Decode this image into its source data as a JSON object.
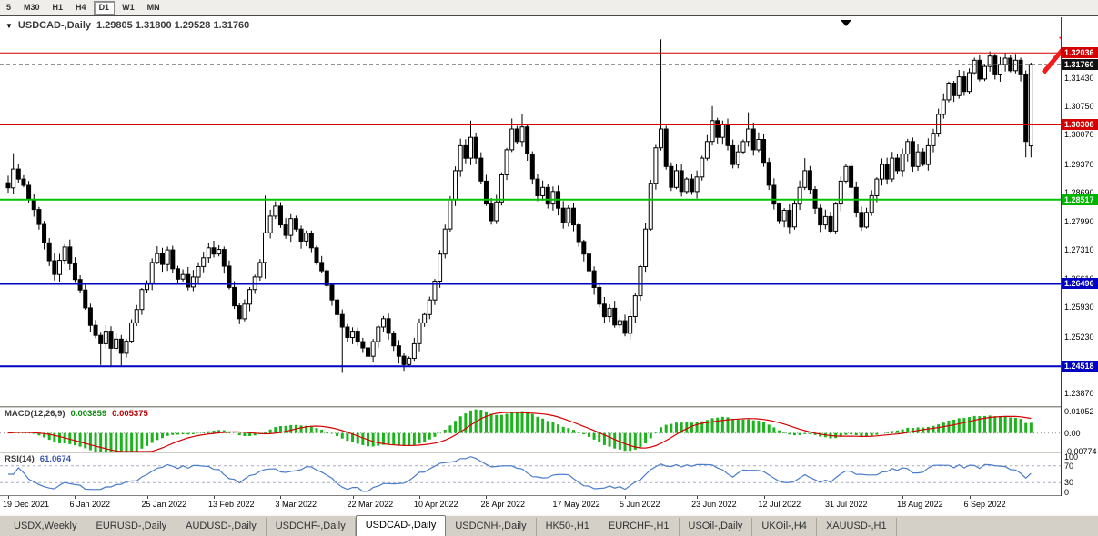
{
  "toolbar": {
    "timeframes": [
      {
        "label": "5",
        "active": false
      },
      {
        "label": "M30",
        "active": false
      },
      {
        "label": "H1",
        "active": false
      },
      {
        "label": "H4",
        "active": false
      },
      {
        "label": "D1",
        "active": true
      },
      {
        "label": "W1",
        "active": false
      },
      {
        "label": "MN",
        "active": false
      }
    ]
  },
  "chart_header": {
    "dropdown_icon": "▼",
    "title": "USDCAD-,Daily",
    "ohlc_readout": "1.29805 1.31800 1.29528 1.31760"
  },
  "chart_data": {
    "type": "candlestick",
    "title": "USDCAD-,Daily",
    "symbol": "USDCAD-",
    "timeframe": "Daily",
    "last_bar": {
      "open": 1.29805,
      "high": 1.318,
      "low": 1.29528,
      "close": 1.3176
    },
    "current_price": "1.31760",
    "x_labels": [
      "19 Dec 2021",
      "6 Jan 2022",
      "25 Jan 2022",
      "13 Feb 2022",
      "3 Mar 2022",
      "22 Mar 2022",
      "10 Apr 2022",
      "28 Apr 2022",
      "17 May 2022",
      "5 Jun 2022",
      "23 Jun 2022",
      "12 Jul 2022",
      "31 Jul 2022",
      "18 Aug 2022",
      "6 Sep 2022"
    ],
    "y_axis": {
      "min": 1.2387,
      "max": 1.3143,
      "ticks": [
        "1.31430",
        "1.30750",
        "1.30070",
        "1.29370",
        "1.28690",
        "1.27990",
        "1.27310",
        "1.26610",
        "1.25930",
        "1.25230",
        "1.24550",
        "1.23870"
      ]
    },
    "levels": [
      {
        "price": 1.32036,
        "color": "#d40000",
        "width": 1,
        "label": "1.32036",
        "label_bg": "#d40000"
      },
      {
        "price": 1.3176,
        "color": "#555555",
        "width": 1,
        "dash": true,
        "role": "current-price-line",
        "label": "1.31760",
        "label_bg": "#111111"
      },
      {
        "price": 1.30308,
        "color": "#d40000",
        "width": 1,
        "label": "1.30308",
        "label_bg": "#d40000"
      },
      {
        "price": 1.28517,
        "color": "#00c400",
        "width": 2,
        "label": "1.28517",
        "label_bg": "#00b400"
      },
      {
        "price": 1.26496,
        "color": "#0000c0",
        "width": 2,
        "label": "1.26496",
        "label_bg": "#0000c0"
      },
      {
        "price": 1.24518,
        "color": "#0000c0",
        "width": 2,
        "label": "1.24518",
        "label_bg": "#0000c0"
      }
    ],
    "bull_color": "#ffffff",
    "bear_color": "#000000",
    "outline_color": "#000000",
    "series": {
      "closes": [
        1.288,
        1.2925,
        1.2901,
        1.2886,
        1.2852,
        1.2828,
        1.2792,
        1.2748,
        1.2705,
        1.2672,
        1.2706,
        1.2738,
        1.2698,
        1.266,
        1.2635,
        1.2592,
        1.255,
        1.2526,
        1.2506,
        1.2536,
        1.2495,
        1.2517,
        1.2483,
        1.2512,
        1.2556,
        1.2588,
        1.2636,
        1.2652,
        1.2701,
        1.2722,
        1.2696,
        1.2731,
        1.2686,
        1.2661,
        1.2672,
        1.2642,
        1.2666,
        1.2691,
        1.2712,
        1.2736,
        1.2721,
        1.2732,
        1.2692,
        1.2641,
        1.2597,
        1.2566,
        1.2601,
        1.2636,
        1.2666,
        1.2701,
        1.2772,
        1.2812,
        1.2836,
        1.2791,
        1.2766,
        1.2806,
        1.2781,
        1.2752,
        1.2771,
        1.2736,
        1.2701,
        1.2681,
        1.2646,
        1.2611,
        1.2576,
        1.2546,
        1.2521,
        1.2536,
        1.2511,
        1.2496,
        1.2476,
        1.2511,
        1.2546,
        1.2566,
        1.2531,
        1.2501,
        1.2476,
        1.2456,
        1.2471,
        1.2506,
        1.2556,
        1.2576,
        1.2611,
        1.2656,
        1.2721,
        1.2781,
        1.2851,
        1.2921,
        1.2981,
        1.2951,
        1.3001,
        1.2951,
        1.2896,
        1.2841,
        1.2801,
        1.2846,
        1.2911,
        1.2971,
        1.3021,
        1.2991,
        1.3026,
        1.2961,
        1.2901,
        1.2861,
        1.2881,
        1.2841,
        1.2871,
        1.2831,
        1.2796,
        1.2831,
        1.2791,
        1.2751,
        1.2721,
        1.2681,
        1.2641,
        1.2601,
        1.2571,
        1.2591,
        1.2551,
        1.2561,
        1.2531,
        1.2571,
        1.2621,
        1.2691,
        1.2781,
        1.2891,
        1.2976,
        1.3021,
        1.2931,
        1.2881,
        1.2921,
        1.2871,
        1.2901,
        1.2871,
        1.2906,
        1.2951,
        1.2991,
        1.3041,
        1.3001,
        1.3031,
        1.2981,
        1.2936,
        1.2966,
        1.2991,
        1.3021,
        1.2971,
        1.2996,
        1.2941,
        1.2886,
        1.2841,
        1.2801,
        1.2826,
        1.2786,
        1.2841,
        1.2881,
        1.2921,
        1.2876,
        1.2831,
        1.2791,
        1.2811,
        1.2776,
        1.2841,
        1.2896,
        1.2931,
        1.2881,
        1.2821,
        1.2786,
        1.2821,
        1.2861,
        1.2901,
        1.2936,
        1.2901,
        1.2951,
        1.2921,
        1.2961,
        1.2991,
        1.2931,
        1.2966,
        1.2936,
        1.2981,
        1.3011,
        1.3056,
        1.3091,
        1.3131,
        1.3101,
        1.3146,
        1.3111,
        1.3156,
        1.3186,
        1.3141,
        1.3171,
        1.3196,
        1.3151,
        1.3176,
        1.3191,
        1.3161,
        1.3186,
        1.3151,
        1.2991,
        1.3176
      ],
      "overrides": {
        "1": {
          "h": 1.2963
        },
        "18": {
          "l": 1.2455
        },
        "20": {
          "l": 1.245
        },
        "22": {
          "l": 1.2452
        },
        "50": {
          "h": 1.2861,
          "l": 1.2662
        },
        "65": {
          "l": 1.2436
        },
        "77": {
          "l": 1.2441
        },
        "90": {
          "h": 1.3041
        },
        "98": {
          "h": 1.3046
        },
        "100": {
          "h": 1.3056
        },
        "127": {
          "h": 1.3236
        },
        "137": {
          "h": 1.3076
        },
        "144": {
          "h": 1.3061
        },
        "155": {
          "h": 1.2951
        },
        "191": {
          "h": 1.3207
        },
        "194": {
          "h": 1.3204
        },
        "198": {
          "l": 1.2953
        },
        "199": {
          "o": 1.29805,
          "h": 1.318,
          "l": 1.29528
        }
      }
    },
    "indicators": {
      "macd": {
        "type": "bar+line",
        "label": "MACD(12,26,9)",
        "value_main": "0.003859",
        "value_signal": "0.005375",
        "params": [
          12,
          26,
          9
        ],
        "histogram_color": "#1db31d",
        "signal_color": "#d40000",
        "axis": [
          {
            "text": "0.01052",
            "value": 0.01052
          },
          {
            "text": "0.00",
            "value": 0
          },
          {
            "text": "-0.00774",
            "value": -0.00774
          }
        ]
      },
      "rsi": {
        "type": "line",
        "label": "RSI(14)",
        "value": "61.0674",
        "period": 14,
        "line_color": "#4a7cc9",
        "level_lines": [
          70,
          30
        ],
        "axis": [
          {
            "text": "100",
            "value": 100
          },
          {
            "text": "70",
            "value": 70
          },
          {
            "text": "30",
            "value": 30
          },
          {
            "text": "0",
            "value": 0
          }
        ]
      }
    }
  },
  "annotations": {
    "arrow_color": "#f21b1b",
    "shift_marker_color": "#000000"
  },
  "tabs": [
    {
      "label": "USDX,Weekly",
      "active": false
    },
    {
      "label": "EURUSD-,Daily",
      "active": false
    },
    {
      "label": "AUDUSD-,Daily",
      "active": false
    },
    {
      "label": "USDCHF-,Daily",
      "active": false
    },
    {
      "label": "USDCAD-,Daily",
      "active": true
    },
    {
      "label": "USDCNH-,Daily",
      "active": false
    },
    {
      "label": "HK50-,H1",
      "active": false
    },
    {
      "label": "EURCHF-,H1",
      "active": false
    },
    {
      "label": "USOil-,Daily",
      "active": false
    },
    {
      "label": "UKOil-,H4",
      "active": false
    },
    {
      "label": "XAUUSD-,H1",
      "active": false
    }
  ]
}
